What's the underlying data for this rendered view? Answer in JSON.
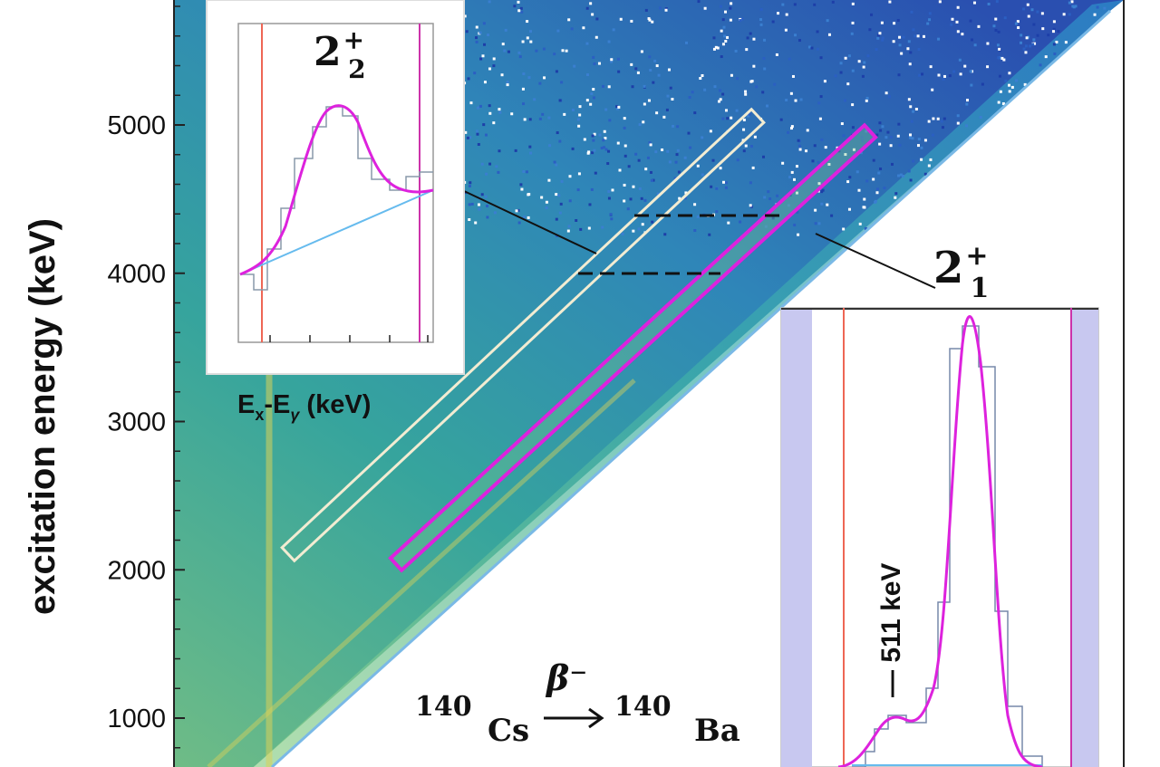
{
  "chart_data": {
    "type": "heatmap",
    "title": "",
    "ylabel": "excitation energy (keV)",
    "xlabel": "",
    "ylim": [
      500,
      5800
    ],
    "yticks": [
      1000,
      2000,
      3000,
      4000,
      5000
    ],
    "ytick_labels": [
      "1000",
      "2000",
      "3000",
      "4000",
      "5000"
    ],
    "reaction": {
      "parent_mass": "140",
      "parent": "Cs",
      "decay": "β⁻",
      "daughter_mass": "140",
      "daughter": "Ba"
    },
    "gates": [
      {
        "name": "2_2+ gate",
        "color": "#f2ecd2",
        "ex_range": [
          2050,
          5050
        ],
        "offset_from_diagonal": 1500
      },
      {
        "name": "2_1+ gate",
        "color": "#dd22dd",
        "ex_range": [
          2000,
          5000
        ],
        "offset_from_diagonal": 600
      }
    ],
    "dashed_markers": [
      4000,
      4400
    ],
    "insets": [
      {
        "name": "2_2+ projection",
        "state_label": "2",
        "state_sub": "2",
        "state_sup": "+",
        "axis_label_main": "E",
        "axis_label_sub1": "x",
        "axis_label_mid": "-E",
        "axis_label_sub2": "γ",
        "axis_label_unit": " (keV)",
        "peak_position": 0.55
      },
      {
        "name": "2_1+ projection",
        "state_label": "2",
        "state_sub": "1",
        "state_sup": "+",
        "annotation": "— 511 keV",
        "peak_position": 0.66
      }
    ]
  },
  "colors": {
    "axis": "#222222",
    "gate_22": "#f2ecd2",
    "gate_21": "#dd22dd",
    "fit": "#dd22dd",
    "background_fit": "#66bbee",
    "marker_red": "#ee6655",
    "marker_magenta": "#cc33aa",
    "shade": "#c8c8f0"
  }
}
